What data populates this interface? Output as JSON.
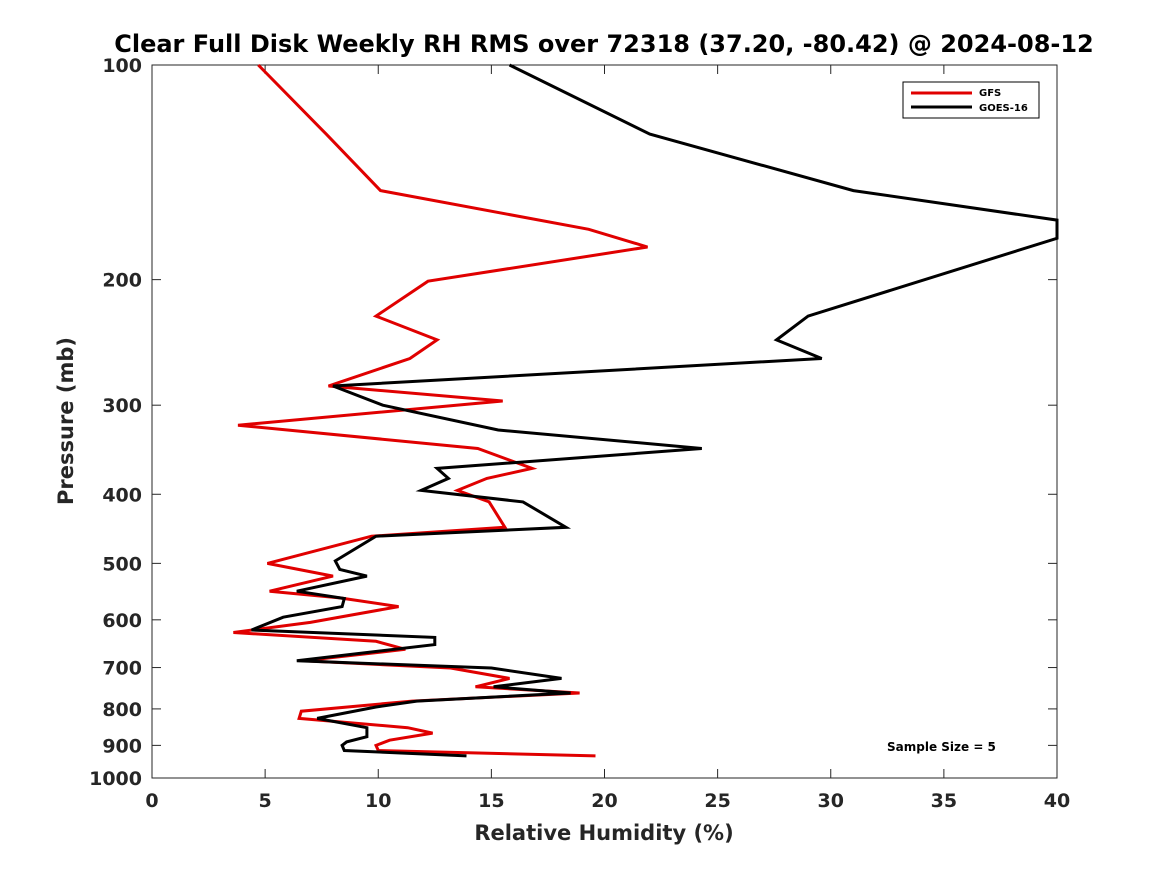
{
  "chart_data": {
    "type": "line",
    "title": "Clear Full Disk Weekly RH RMS over 72318 (37.20, -80.42) @ 2024-08-12",
    "xlabel": "Relative Humidity (%)",
    "ylabel": "Pressure (mb)",
    "xlim": [
      0,
      40
    ],
    "ylim": [
      100,
      1000
    ],
    "y_scale": "log",
    "y_reversed": true,
    "x_ticks": [
      "0",
      "5",
      "10",
      "15",
      "20",
      "25",
      "30",
      "35",
      "40"
    ],
    "y_ticks": [
      "100",
      "200",
      "300",
      "400",
      "500",
      "600",
      "700",
      "800",
      "900",
      "1000"
    ],
    "grid": false,
    "legend_position": "top-right",
    "annotation": "Sample Size = 5",
    "series": [
      {
        "name": "GFS",
        "color": "#e00000",
        "points": [
          [
            4.7,
            100
          ],
          [
            7.7,
            125
          ],
          [
            10.1,
            150
          ],
          [
            19.3,
            170
          ],
          [
            21.9,
            180
          ],
          [
            12.2,
            201
          ],
          [
            9.9,
            225
          ],
          [
            12.6,
            243
          ],
          [
            11.4,
            258
          ],
          [
            7.8,
            282
          ],
          [
            15.5,
            296
          ],
          [
            3.8,
            320
          ],
          [
            14.4,
            345
          ],
          [
            16.8,
            368
          ],
          [
            14.8,
            380
          ],
          [
            13.5,
            395
          ],
          [
            14.9,
            410
          ],
          [
            15.6,
            445
          ],
          [
            9.7,
            458
          ],
          [
            5.1,
            500
          ],
          [
            8.0,
            521
          ],
          [
            5.2,
            547
          ],
          [
            8.3,
            559
          ],
          [
            10.9,
            575
          ],
          [
            7.0,
            605
          ],
          [
            3.6,
            625
          ],
          [
            9.9,
            643
          ],
          [
            11.2,
            660
          ],
          [
            6.7,
            685
          ],
          [
            13.2,
            701
          ],
          [
            15.8,
            725
          ],
          [
            14.3,
            745
          ],
          [
            18.9,
            760
          ],
          [
            11.5,
            780
          ],
          [
            6.6,
            806
          ],
          [
            6.5,
            825
          ],
          [
            11.3,
            850
          ],
          [
            12.4,
            865
          ],
          [
            10.5,
            885
          ],
          [
            9.9,
            900
          ],
          [
            10.0,
            915
          ],
          [
            19.6,
            931
          ]
        ]
      },
      {
        "name": "GOES-16",
        "color": "#000000",
        "points": [
          [
            15.8,
            100
          ],
          [
            22.0,
            125
          ],
          [
            31.0,
            150
          ],
          [
            40.0,
            165
          ],
          [
            40.0,
            175
          ],
          [
            29.0,
            225
          ],
          [
            27.6,
            243
          ],
          [
            29.6,
            258
          ],
          [
            8.0,
            282
          ],
          [
            10.2,
            300
          ],
          [
            15.3,
            325
          ],
          [
            24.3,
            345
          ],
          [
            12.6,
            368
          ],
          [
            13.1,
            380
          ],
          [
            11.9,
            395
          ],
          [
            16.4,
            410
          ],
          [
            18.3,
            445
          ],
          [
            9.9,
            458
          ],
          [
            8.1,
            496
          ],
          [
            8.3,
            510
          ],
          [
            9.5,
            521
          ],
          [
            6.4,
            547
          ],
          [
            8.5,
            560
          ],
          [
            8.4,
            575
          ],
          [
            5.8,
            595
          ],
          [
            4.4,
            620
          ],
          [
            12.5,
            635
          ],
          [
            12.5,
            650
          ],
          [
            6.4,
            685
          ],
          [
            15.0,
            701
          ],
          [
            18.1,
            725
          ],
          [
            15.1,
            745
          ],
          [
            18.5,
            760
          ],
          [
            11.7,
            780
          ],
          [
            9.9,
            795
          ],
          [
            7.3,
            825
          ],
          [
            9.5,
            850
          ],
          [
            9.5,
            875
          ],
          [
            8.6,
            890
          ],
          [
            8.4,
            900
          ],
          [
            8.5,
            915
          ],
          [
            13.9,
            931
          ]
        ]
      }
    ]
  }
}
